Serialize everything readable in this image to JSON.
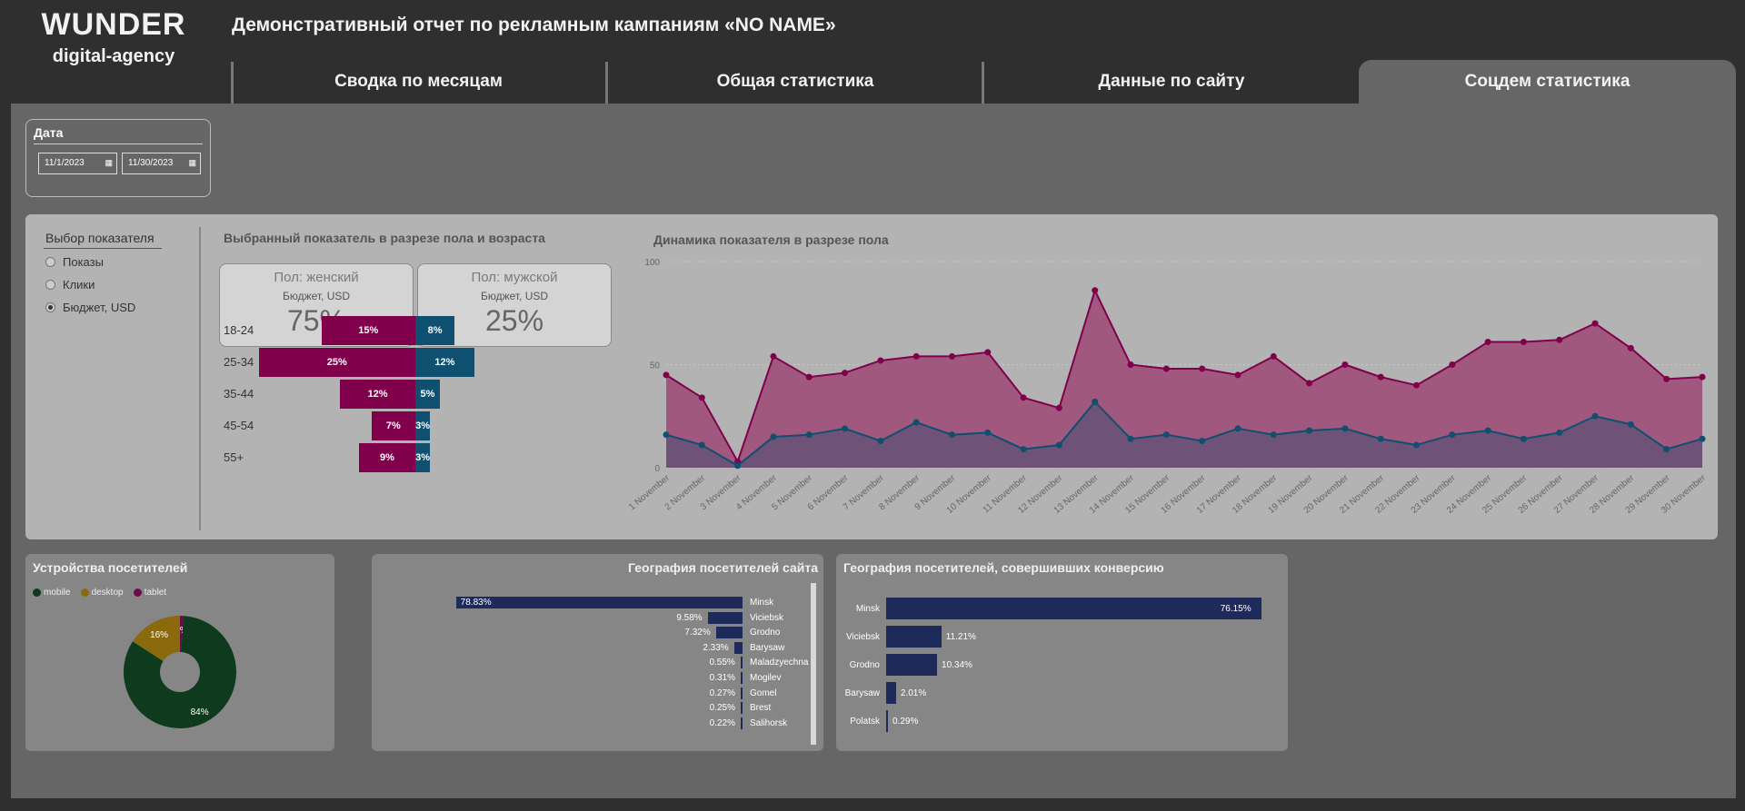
{
  "logo": {
    "line1": "WUNDER",
    "line2": "digital-agency"
  },
  "report_title": "Демонстративный отчет по рекламным кампаниям «NO NAME»",
  "tabs": [
    {
      "label": "Сводка по месяцам"
    },
    {
      "label": "Общая статистика"
    },
    {
      "label": "Данные по сайту"
    },
    {
      "label": "Соцдем статистика"
    }
  ],
  "date_slicer": {
    "title": "Дата",
    "start": "11/1/2023",
    "end": "11/30/2023"
  },
  "metric_selector": {
    "title": "Выбор показателя",
    "options": [
      "Показы",
      "Клики",
      "Бюджет, USD"
    ],
    "selected": "Бюджет, USD"
  },
  "gender_age": {
    "title": "Выбранный показатель в разрезе пола и возраста",
    "female_card": {
      "label": "Пол: женский",
      "metric": "Бюджет, USD",
      "value": "75%"
    },
    "male_card": {
      "label": "Пол: мужской",
      "metric": "Бюджет, USD",
      "value": "25%"
    },
    "ages": [
      "18-24",
      "25-34",
      "35-44",
      "45-54",
      "55+"
    ],
    "female_values": [
      15,
      25,
      12,
      7,
      9
    ],
    "male_values": [
      8,
      12,
      5,
      3,
      3
    ],
    "female_labels": [
      "15%",
      "25%",
      "12%",
      "7%",
      "9%"
    ],
    "male_labels": [
      "8%",
      "12%",
      "5%",
      "3%",
      "3%"
    ],
    "female_color": "#80004c",
    "male_color": "#0f4f70"
  },
  "dynamics": {
    "title": "Динамика показателя в разрезе пола",
    "y_ticks": [
      "100",
      "50",
      "0"
    ]
  },
  "devices": {
    "title": "Устройства посетителей",
    "legend": [
      {
        "label": "mobile",
        "color": "#0e3a1e"
      },
      {
        "label": "desktop",
        "color": "#8a6a0c"
      },
      {
        "label": "tablet",
        "color": "#6e0a4a"
      }
    ]
  },
  "geo_site": {
    "title": "География посетителей сайта"
  },
  "geo_conv": {
    "title": "География посетителей, совершивших конверсию"
  },
  "chart_data": [
    {
      "type": "area",
      "title": "Динамика показателя в разрезе пола",
      "x": [
        "1 November",
        "2 November",
        "3 November",
        "4 November",
        "5 November",
        "6 November",
        "7 November",
        "8 November",
        "9 November",
        "10 November",
        "11 November",
        "12 November",
        "13 November",
        "14 November",
        "15 November",
        "16 November",
        "17 November",
        "18 November",
        "19 November",
        "20 November",
        "21 November",
        "22 November",
        "23 November",
        "24 November",
        "25 November",
        "26 November",
        "27 November",
        "28 November",
        "29 November",
        "30 November"
      ],
      "ylim": [
        0,
        100
      ],
      "series": [
        {
          "color": "#80004c",
          "values": [
            45,
            34,
            3,
            54,
            44,
            46,
            52,
            54,
            54,
            56,
            34,
            29,
            86,
            50,
            48,
            48,
            45,
            54,
            41,
            50,
            44,
            40,
            50,
            61,
            61,
            62,
            70,
            58,
            43,
            44
          ]
        },
        {
          "color": "#0f4f70",
          "values": [
            16,
            11,
            1,
            15,
            16,
            19,
            13,
            22,
            16,
            17,
            9,
            11,
            32,
            14,
            16,
            13,
            19,
            16,
            18,
            19,
            14,
            11,
            16,
            18,
            14,
            17,
            25,
            21,
            9,
            14
          ]
        }
      ]
    },
    {
      "type": "pie",
      "title": "Устройства посетителей",
      "categories": [
        "mobile",
        "desktop",
        "tablet"
      ],
      "values": [
        84,
        16,
        1
      ],
      "labels": [
        "84%",
        "16%",
        "1%"
      ]
    },
    {
      "type": "bar",
      "title": "География посетителей сайта",
      "categories": [
        "Minsk",
        "Viciebsk",
        "Grodno",
        "Barysaw",
        "Maladzyechna",
        "Mogilev",
        "Gomel",
        "Brest",
        "Salihorsk"
      ],
      "values": [
        78.83,
        9.58,
        7.32,
        2.33,
        0.55,
        0.31,
        0.27,
        0.25,
        0.22
      ],
      "labels": [
        "78.83%",
        "9.58%",
        "7.32%",
        "2.33%",
        "0.55%",
        "0.31%",
        "0.27%",
        "0.25%",
        "0.22%"
      ]
    },
    {
      "type": "bar",
      "title": "География посетителей, совершивших конверсию",
      "categories": [
        "Minsk",
        "Viciebsk",
        "Grodno",
        "Barysaw",
        "Polatsk"
      ],
      "values": [
        76.15,
        11.21,
        10.34,
        2.01,
        0.29
      ],
      "labels": [
        "76.15%",
        "11.21%",
        "10.34%",
        "2.01%",
        "0.29%"
      ]
    }
  ]
}
